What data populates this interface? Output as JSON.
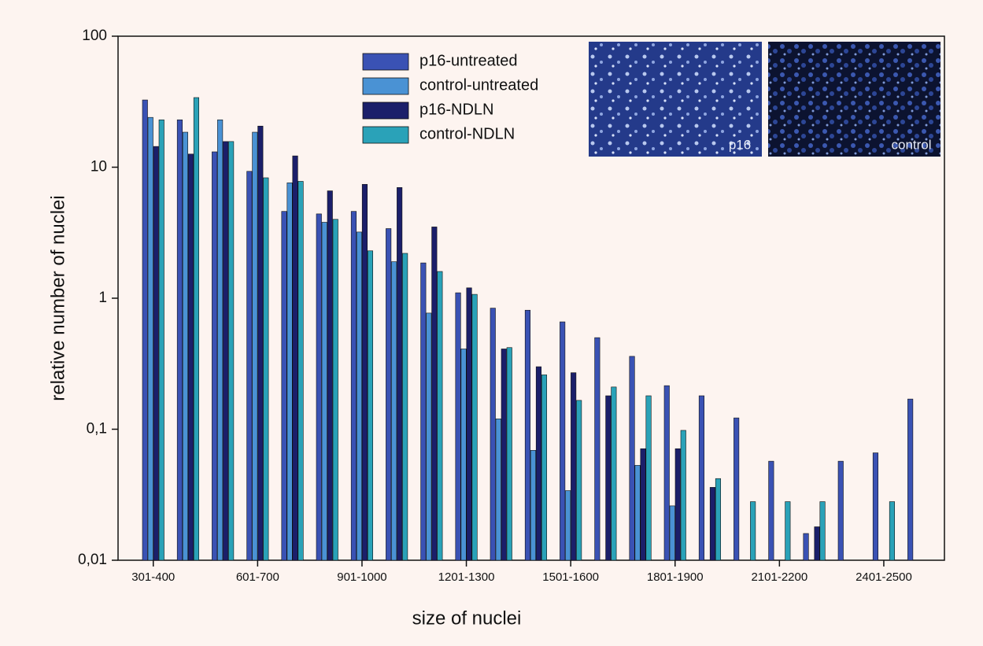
{
  "chart_data": {
    "type": "bar",
    "y_label": "relative number of nuclei",
    "x_label": "size of nuclei",
    "log_y": true,
    "legend": "top",
    "categories": [
      "301-400",
      null,
      null,
      "601-700",
      null,
      null,
      "901-1000",
      null,
      null,
      "1201-1300",
      null,
      null,
      "1501-1600",
      null,
      null,
      "1801-1900",
      null,
      null,
      "2101-2200",
      null,
      null,
      "2401-2500",
      null
    ],
    "series": [
      {
        "name": "p16-untreated",
        "color": "#3a52b4",
        "values": [
          32.6,
          23,
          13.1,
          9.3,
          4.6,
          4.4,
          4.6,
          3.4,
          1.86,
          1.1,
          0.84,
          0.81,
          0.66,
          0.5,
          0.36,
          0.215,
          0.18,
          0.122,
          0.057,
          0.016,
          0.057,
          0.066,
          0.17
        ]
      },
      {
        "name": "control-untreated",
        "color": "#4a92d4",
        "values": [
          24,
          18.5,
          23,
          18.5,
          7.6,
          3.8,
          3.2,
          1.9,
          0.77,
          0.41,
          0.12,
          0.069,
          0.034,
          null,
          0.053,
          0.026,
          null,
          null,
          null,
          null,
          null,
          null,
          null
        ]
      },
      {
        "name": "p16-NDLN",
        "color": "#1b1f6a",
        "values": [
          14.4,
          12.6,
          15.7,
          20.6,
          12.2,
          6.6,
          7.4,
          7.0,
          3.5,
          1.2,
          0.41,
          0.3,
          0.27,
          0.18,
          0.071,
          0.071,
          0.036,
          null,
          null,
          0.018,
          null,
          null,
          null
        ]
      },
      {
        "name": "control-NDLN",
        "color": "#2aa2b8",
        "values": [
          23,
          34,
          15.7,
          8.3,
          7.8,
          4.0,
          2.3,
          2.2,
          1.6,
          1.07,
          0.42,
          0.26,
          0.166,
          0.21,
          0.18,
          0.098,
          0.042,
          0.028,
          0.028,
          0.028,
          null,
          0.028,
          null
        ]
      }
    ],
    "ylim": [
      0.01,
      100
    ],
    "yticks": [
      {
        "value": 0.01,
        "label": "0,01"
      },
      {
        "value": 0.1,
        "label": "0,1"
      },
      1,
      10,
      100
    ],
    "insets": [
      "p16",
      "control"
    ]
  }
}
